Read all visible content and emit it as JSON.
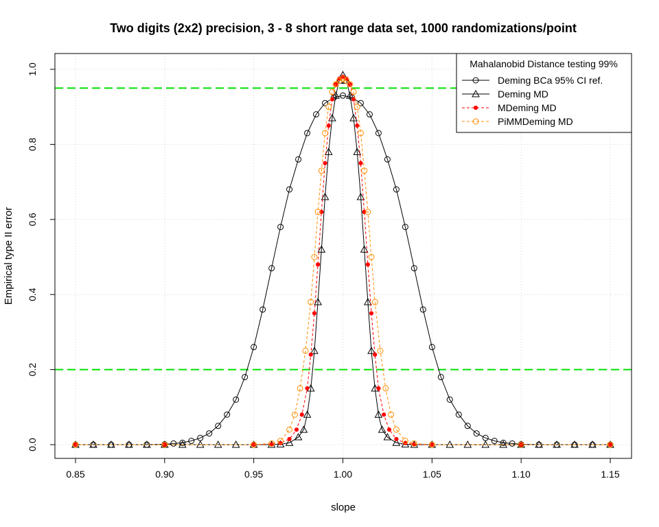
{
  "chart_data": {
    "type": "line",
    "title": "Two digits (2x2) precision, 3 - 8 short range data set, 1000 randomizations/point",
    "xlabel": "slope",
    "ylabel": "Empirical type II error",
    "xlim": [
      0.85,
      1.15
    ],
    "ylim": [
      0.0,
      1.0
    ],
    "xticks": [
      "0.85",
      "0.90",
      "0.95",
      "1.00",
      "1.05",
      "1.10",
      "1.15"
    ],
    "yticks": [
      "0.0",
      "0.2",
      "0.4",
      "0.6",
      "0.8",
      "1.0"
    ],
    "grid": true,
    "reference_lines": [
      {
        "y": 0.95,
        "color": "#00e000"
      },
      {
        "y": 0.2,
        "color": "#00e000"
      }
    ],
    "legend": {
      "position": "top-right",
      "title": "Mahalanobid Distance testing 99%",
      "entries": [
        {
          "label": "Deming BCa 95% CI ref.",
          "color": "#000000",
          "marker": "circle",
          "line": "solid"
        },
        {
          "label": "Deming MD",
          "color": "#000000",
          "marker": "triangle",
          "line": "solid"
        },
        {
          "label": "MDeming MD",
          "color": "#ff0000",
          "marker": "dot",
          "line": "dashed"
        },
        {
          "label": "PiMMDeming MD",
          "color": "#ff8c00",
          "marker": "circle",
          "line": "dashed"
        }
      ]
    },
    "series": [
      {
        "name": "Deming BCa 95% CI ref.",
        "x": [
          0.85,
          0.86,
          0.87,
          0.88,
          0.89,
          0.9,
          0.905,
          0.91,
          0.915,
          0.92,
          0.925,
          0.93,
          0.935,
          0.94,
          0.945,
          0.95,
          0.955,
          0.96,
          0.965,
          0.97,
          0.975,
          0.98,
          0.985,
          0.99,
          0.995,
          1.0,
          1.005,
          1.01,
          1.015,
          1.02,
          1.025,
          1.03,
          1.035,
          1.04,
          1.045,
          1.05,
          1.055,
          1.06,
          1.065,
          1.07,
          1.075,
          1.08,
          1.085,
          1.09,
          1.095,
          1.1,
          1.11,
          1.12,
          1.13,
          1.14,
          1.15
        ],
        "y": [
          0,
          0,
          0,
          0,
          0,
          0.001,
          0.003,
          0.005,
          0.01,
          0.018,
          0.03,
          0.05,
          0.08,
          0.12,
          0.18,
          0.26,
          0.36,
          0.47,
          0.58,
          0.68,
          0.76,
          0.83,
          0.88,
          0.91,
          0.925,
          0.93,
          0.925,
          0.91,
          0.88,
          0.83,
          0.76,
          0.68,
          0.58,
          0.47,
          0.36,
          0.26,
          0.18,
          0.12,
          0.08,
          0.05,
          0.03,
          0.018,
          0.01,
          0.005,
          0.003,
          0.001,
          0,
          0,
          0,
          0,
          0
        ]
      },
      {
        "name": "Deming MD",
        "x": [
          0.85,
          0.86,
          0.87,
          0.88,
          0.89,
          0.9,
          0.91,
          0.92,
          0.93,
          0.94,
          0.95,
          0.96,
          0.965,
          0.97,
          0.975,
          0.978,
          0.98,
          0.982,
          0.984,
          0.986,
          0.988,
          0.99,
          0.992,
          0.994,
          0.996,
          0.998,
          1.0,
          1.002,
          1.004,
          1.006,
          1.008,
          1.01,
          1.012,
          1.014,
          1.016,
          1.018,
          1.02,
          1.022,
          1.025,
          1.03,
          1.035,
          1.04,
          1.05,
          1.06,
          1.07,
          1.08,
          1.09,
          1.1,
          1.11,
          1.12,
          1.13,
          1.14,
          1.15
        ],
        "y": [
          0,
          0,
          0,
          0,
          0,
          0,
          0,
          0,
          0,
          0,
          0,
          0,
          0.001,
          0.005,
          0.02,
          0.04,
          0.08,
          0.15,
          0.25,
          0.38,
          0.52,
          0.66,
          0.78,
          0.87,
          0.93,
          0.97,
          0.985,
          0.97,
          0.93,
          0.87,
          0.78,
          0.66,
          0.52,
          0.38,
          0.25,
          0.15,
          0.08,
          0.04,
          0.02,
          0.005,
          0.001,
          0,
          0,
          0,
          0,
          0,
          0,
          0,
          0,
          0,
          0,
          0,
          0
        ]
      },
      {
        "name": "MDeming MD",
        "x": [
          0.85,
          0.9,
          0.95,
          0.96,
          0.965,
          0.97,
          0.974,
          0.977,
          0.98,
          0.982,
          0.984,
          0.986,
          0.988,
          0.99,
          0.992,
          0.994,
          0.996,
          0.998,
          1.0,
          1.002,
          1.004,
          1.006,
          1.008,
          1.01,
          1.012,
          1.014,
          1.016,
          1.018,
          1.02,
          1.023,
          1.026,
          1.03,
          1.035,
          1.04,
          1.05,
          1.1,
          1.15
        ],
        "y": [
          0,
          0,
          0,
          0.001,
          0.004,
          0.015,
          0.04,
          0.08,
          0.15,
          0.24,
          0.35,
          0.48,
          0.62,
          0.75,
          0.85,
          0.92,
          0.96,
          0.975,
          0.98,
          0.975,
          0.96,
          0.92,
          0.85,
          0.75,
          0.62,
          0.48,
          0.35,
          0.24,
          0.15,
          0.08,
          0.04,
          0.015,
          0.004,
          0.001,
          0,
          0,
          0
        ]
      },
      {
        "name": "PiMMDeming MD",
        "x": [
          0.85,
          0.9,
          0.95,
          0.96,
          0.965,
          0.97,
          0.973,
          0.976,
          0.979,
          0.982,
          0.984,
          0.986,
          0.988,
          0.99,
          0.992,
          0.994,
          0.996,
          0.998,
          1.0,
          1.002,
          1.004,
          1.006,
          1.008,
          1.01,
          1.012,
          1.014,
          1.016,
          1.018,
          1.021,
          1.024,
          1.027,
          1.03,
          1.035,
          1.04,
          1.05,
          1.1,
          1.15
        ],
        "y": [
          0,
          0,
          0,
          0.003,
          0.01,
          0.04,
          0.08,
          0.15,
          0.25,
          0.38,
          0.5,
          0.62,
          0.73,
          0.83,
          0.9,
          0.94,
          0.96,
          0.97,
          0.975,
          0.97,
          0.96,
          0.94,
          0.9,
          0.83,
          0.73,
          0.62,
          0.5,
          0.38,
          0.25,
          0.15,
          0.08,
          0.04,
          0.01,
          0.003,
          0,
          0,
          0
        ]
      }
    ]
  }
}
